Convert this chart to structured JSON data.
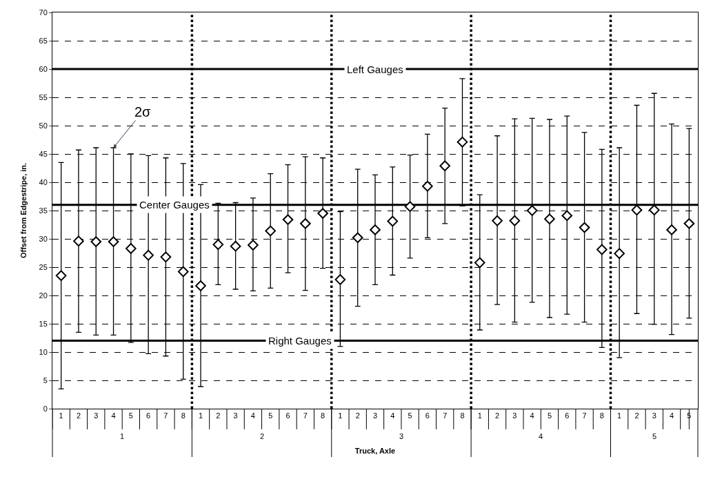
{
  "chart_data": {
    "type": "scatter",
    "xlabel": "Truck, Axle",
    "ylabel": "Offset from Edgestripe, in.",
    "categories": [
      "1",
      "2",
      "3",
      "4",
      "5",
      "6",
      "7",
      "8",
      "1",
      "2",
      "3",
      "4",
      "5",
      "6",
      "7",
      "8",
      "1",
      "2",
      "3",
      "4",
      "5",
      "6",
      "7",
      "8",
      "1",
      "2",
      "3",
      "4",
      "5",
      "6",
      "7",
      "8",
      "1",
      "2",
      "3",
      "4",
      "5"
    ],
    "series": [
      {
        "color": "#000000",
        "marker": "diamond",
        "values": [
          23.5,
          29.6,
          29.5,
          29.5,
          28.3,
          27.1,
          26.8,
          24.2,
          21.7,
          29.0,
          28.7,
          28.9,
          31.4,
          33.4,
          32.7,
          34.5,
          22.8,
          30.2,
          31.6,
          33.1,
          35.7,
          39.3,
          42.9,
          47.1,
          25.8,
          33.2,
          33.2,
          35.0,
          33.5,
          34.1,
          32.0,
          28.1,
          27.4,
          35.1,
          35.1,
          31.6,
          32.7
        ],
        "errors": [
          [
            3.5,
            43.5
          ],
          [
            13.5,
            45.7
          ],
          [
            13,
            46.1
          ],
          [
            13,
            46.1
          ],
          [
            11.7,
            45
          ],
          [
            9.7,
            44.7
          ],
          [
            9.3,
            44.3
          ],
          [
            5.2,
            43.3
          ],
          [
            3.9,
            39.6
          ],
          [
            21.9,
            36.3
          ],
          [
            21.1,
            36.4
          ],
          [
            20.8,
            37.2
          ],
          [
            21.3,
            41.5
          ],
          [
            24,
            43.1
          ],
          [
            20.9,
            44.5
          ],
          [
            24.8,
            44.3
          ],
          [
            11,
            34.8
          ],
          [
            18.1,
            42.3
          ],
          [
            21.9,
            41.3
          ],
          [
            23.6,
            42.7
          ],
          [
            26.6,
            44.8
          ],
          [
            30.2,
            48.5
          ],
          [
            32.7,
            53.1
          ],
          [
            35.8,
            58.3
          ],
          [
            13.9,
            37.8
          ],
          [
            18.4,
            48.2
          ],
          [
            15.3,
            51.2
          ],
          [
            18.8,
            51.3
          ],
          [
            16.1,
            51.1
          ],
          [
            16.7,
            51.7
          ],
          [
            15.3,
            48.8
          ],
          [
            10.8,
            45.8
          ],
          [
            9,
            46.1
          ],
          [
            16.8,
            53.6
          ],
          [
            14.9,
            55.7
          ],
          [
            13.1,
            50.3
          ],
          [
            16,
            49.5
          ]
        ]
      }
    ],
    "ylim": [
      0,
      70
    ],
    "yticks": [
      0,
      5,
      10,
      15,
      20,
      25,
      30,
      35,
      40,
      45,
      50,
      55,
      60,
      65,
      70
    ],
    "grid": "y",
    "legend": false,
    "ref_lines": [
      {
        "axis": "y",
        "value": 60,
        "label": "Left Gauges",
        "color": "#000000",
        "line_style": "solid"
      },
      {
        "axis": "y",
        "value": 36,
        "label": "Center Gauges",
        "color": "#000000",
        "line_style": "solid"
      },
      {
        "axis": "y",
        "value": 12,
        "label": "Right Gauges",
        "color": "#000000",
        "line_style": "solid"
      }
    ],
    "annotations": [
      "1",
      "2",
      "3",
      "4",
      "5",
      {
        "text": "2σ",
        "x": "4",
        "y": 46.1
      }
    ]
  }
}
